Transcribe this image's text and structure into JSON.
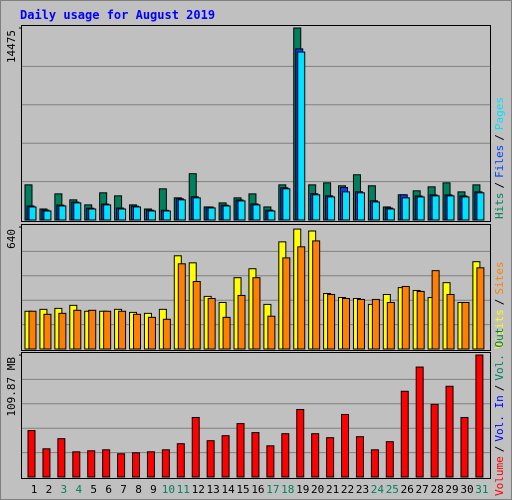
{
  "chart_data": [
    {
      "type": "bar",
      "title": "Daily usage for August 2019",
      "ylim": [
        0,
        14475
      ],
      "yticks": [
        14475
      ],
      "series": [
        {
          "name": "Hits",
          "color": "#00805c",
          "values": [
            2650,
            830,
            1970,
            1520,
            1140,
            2050,
            1820,
            1140,
            830,
            2350,
            1670,
            3490,
            985,
            1290,
            1670,
            1970,
            985,
            2650,
            14475,
            2650,
            2800,
            2580,
            3410,
            2580,
            985,
            1900,
            2200,
            2500,
            2800,
            2120,
            2650
          ]
        },
        {
          "name": "Files",
          "color": "#0040ff",
          "values": [
            1060,
            740,
            1120,
            1350,
            890,
            1200,
            900,
            1040,
            740,
            730,
            1600,
            1750,
            980,
            1120,
            1510,
            1210,
            740,
            2430,
            12900,
            1980,
            1820,
            2450,
            2130,
            1450,
            900,
            1900,
            1810,
            1890,
            1890,
            1810,
            2120
          ]
        },
        {
          "name": "Pages",
          "color": "#00e0ff",
          "values": [
            985,
            680,
            1060,
            1290,
            830,
            1140,
            830,
            985,
            680,
            680,
            1520,
            1670,
            910,
            1060,
            1440,
            1140,
            680,
            2350,
            12660,
            1900,
            1740,
            2120,
            2050,
            1360,
            830,
            1670,
            1740,
            1820,
            1820,
            1740,
            2050
          ]
        }
      ]
    },
    {
      "type": "bar",
      "ylim": [
        0,
        640
      ],
      "yticks": [
        640
      ],
      "series": [
        {
          "name": "Visits",
          "color": "#ffff00",
          "values": [
            198,
            208,
            213,
            229,
            198,
            198,
            208,
            192,
            187,
            208,
            489,
            452,
            276,
            244,
            374,
            421,
            234,
            562,
            629,
            619,
            291,
            270,
            265,
            234,
            286,
            322,
            307,
            270,
            348,
            244,
            458
          ]
        },
        {
          "name": "Sites",
          "color": "#ff8000",
          "values": [
            198,
            182,
            187,
            203,
            203,
            198,
            198,
            182,
            166,
            156,
            447,
            354,
            265,
            166,
            281,
            374,
            172,
            478,
            536,
            567,
            286,
            265,
            260,
            260,
            244,
            328,
            302,
            411,
            286,
            244,
            426
          ]
        }
      ]
    },
    {
      "type": "bar",
      "ylim": [
        0,
        109.87
      ],
      "yticks": [
        {
          "value": 109.87,
          "label": "109.87 MB"
        }
      ],
      "categories": [
        "1",
        "2",
        "3",
        "4",
        "5",
        "6",
        "7",
        "8",
        "9",
        "10",
        "11",
        "12",
        "13",
        "14",
        "15",
        "16",
        "17",
        "18",
        "19",
        "20",
        "21",
        "22",
        "23",
        "24",
        "25",
        "26",
        "27",
        "28",
        "29",
        "30",
        "31"
      ],
      "category_colors": [
        "#000000",
        "#000000",
        "#00805c",
        "#00805c",
        "#000000",
        "#000000",
        "#000000",
        "#000000",
        "#000000",
        "#00805c",
        "#00805c",
        "#000000",
        "#000000",
        "#000000",
        "#000000",
        "#000000",
        "#00805c",
        "#00805c",
        "#000000",
        "#000000",
        "#000000",
        "#000000",
        "#000000",
        "#00805c",
        "#00805c",
        "#000000",
        "#000000",
        "#000000",
        "#000000",
        "#000000",
        "#00805c"
      ],
      "series": [
        {
          "name": "Volume",
          "color": "#ff0000",
          "values": [
            41.8,
            25.4,
            34.5,
            22.7,
            23.6,
            24.5,
            20.9,
            21.8,
            22.7,
            24.5,
            30.0,
            53.6,
            32.7,
            37.2,
            48.1,
            40.0,
            28.1,
            39.0,
            60.8,
            39.0,
            35.4,
            56.3,
            36.3,
            24.5,
            31.8,
            77.2,
            99.0,
            65.4,
            81.7,
            53.6,
            109.87
          ]
        },
        {
          "name": "Vol. In",
          "color": "#0000ff",
          "values": [
            null,
            null,
            null,
            null,
            null,
            null,
            null,
            null,
            null,
            null,
            null,
            null,
            null,
            null,
            null,
            null,
            null,
            null,
            null,
            null,
            null,
            null,
            null,
            null,
            null,
            null,
            null,
            null,
            null,
            null,
            null
          ]
        },
        {
          "name": "Vol. Out",
          "color": "#00805c",
          "values": [
            null,
            null,
            null,
            null,
            null,
            null,
            null,
            null,
            null,
            null,
            null,
            null,
            null,
            null,
            null,
            null,
            null,
            null,
            null,
            null,
            null,
            null,
            null,
            null,
            null,
            null,
            null,
            null,
            null,
            null,
            null
          ]
        }
      ]
    }
  ],
  "legend_separator": "/"
}
